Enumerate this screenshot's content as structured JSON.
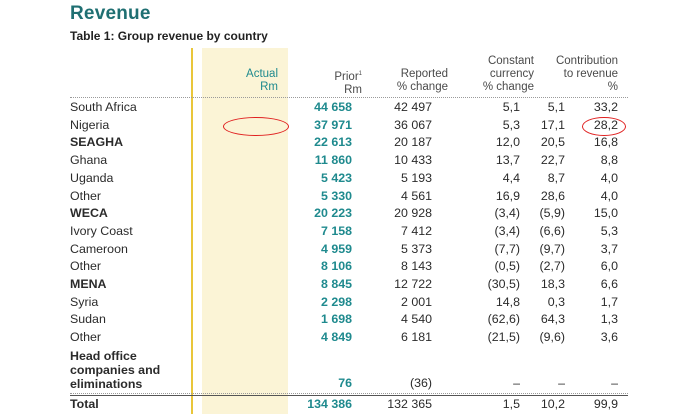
{
  "section_title": "Revenue",
  "table_title": "Table 1: Group revenue by country",
  "headers": {
    "actual": [
      "Actual",
      "Rm"
    ],
    "prior": [
      "Prior",
      "Rm"
    ],
    "prior_sup": "1",
    "reported": [
      "Reported",
      "% change"
    ],
    "constant": [
      "Constant",
      "currency",
      "% change"
    ],
    "contribution": [
      "Contribution",
      "to revenue",
      "%"
    ]
  },
  "rows": [
    {
      "label": "South Africa",
      "bold": false,
      "actual": "44 658",
      "prior": "42 497",
      "reported": "5,1",
      "constant": "5,1",
      "contribution": "33,2"
    },
    {
      "label": "Nigeria",
      "bold": false,
      "actual": "37 971",
      "prior": "36 067",
      "reported": "5,3",
      "constant": "17,1",
      "contribution": "28,2"
    },
    {
      "label": "SEAGHA",
      "bold": true,
      "actual": "22 613",
      "prior": "20 187",
      "reported": "12,0",
      "constant": "20,5",
      "contribution": "16,8"
    },
    {
      "label": "Ghana",
      "bold": false,
      "actual": "11 860",
      "prior": "10 433",
      "reported": "13,7",
      "constant": "22,7",
      "contribution": "8,8"
    },
    {
      "label": "Uganda",
      "bold": false,
      "actual": "5 423",
      "prior": "5 193",
      "reported": "4,4",
      "constant": "8,7",
      "contribution": "4,0"
    },
    {
      "label": "Other",
      "bold": false,
      "actual": "5 330",
      "prior": "4 561",
      "reported": "16,9",
      "constant": "28,6",
      "contribution": "4,0"
    },
    {
      "label": "WECA",
      "bold": true,
      "actual": "20 223",
      "prior": "20 928",
      "reported": "(3,4)",
      "constant": "(5,9)",
      "contribution": "15,0"
    },
    {
      "label": "Ivory Coast",
      "bold": false,
      "actual": "7 158",
      "prior": "7 412",
      "reported": "(3,4)",
      "constant": "(6,6)",
      "contribution": "5,3"
    },
    {
      "label": "Cameroon",
      "bold": false,
      "actual": "4 959",
      "prior": "5 373",
      "reported": "(7,7)",
      "constant": "(9,7)",
      "contribution": "3,7"
    },
    {
      "label": "Other",
      "bold": false,
      "actual": "8 106",
      "prior": "8 143",
      "reported": "(0,5)",
      "constant": "(2,7)",
      "contribution": "6,0"
    },
    {
      "label": "MENA",
      "bold": true,
      "actual": "8 845",
      "prior": "12 722",
      "reported": "(30,5)",
      "constant": "18,3",
      "contribution": "6,6"
    },
    {
      "label": "Syria",
      "bold": false,
      "actual": "2 298",
      "prior": "2 001",
      "reported": "14,8",
      "constant": "0,3",
      "contribution": "1,7"
    },
    {
      "label": "Sudan",
      "bold": false,
      "actual": "1 698",
      "prior": "4 540",
      "reported": "(62,6)",
      "constant": "64,3",
      "contribution": "1,3"
    },
    {
      "label": "Other",
      "bold": false,
      "actual": "4 849",
      "prior": "6 181",
      "reported": "(21,5)",
      "constant": "(9,6)",
      "contribution": "3,6"
    }
  ],
  "head_office": {
    "label": "Head office companies and eliminations",
    "actual": "76",
    "prior": "(36)",
    "reported": "–",
    "constant": "–",
    "contribution": "–"
  },
  "total": {
    "label": "Total",
    "actual": "134 386",
    "prior": "132 365",
    "reported": "1,5",
    "constant": "10,2",
    "contribution": "99,9"
  },
  "annotation_color": "#e02020",
  "accent_color": "#1f6f72",
  "highlight_color": "#fbf4d6"
}
